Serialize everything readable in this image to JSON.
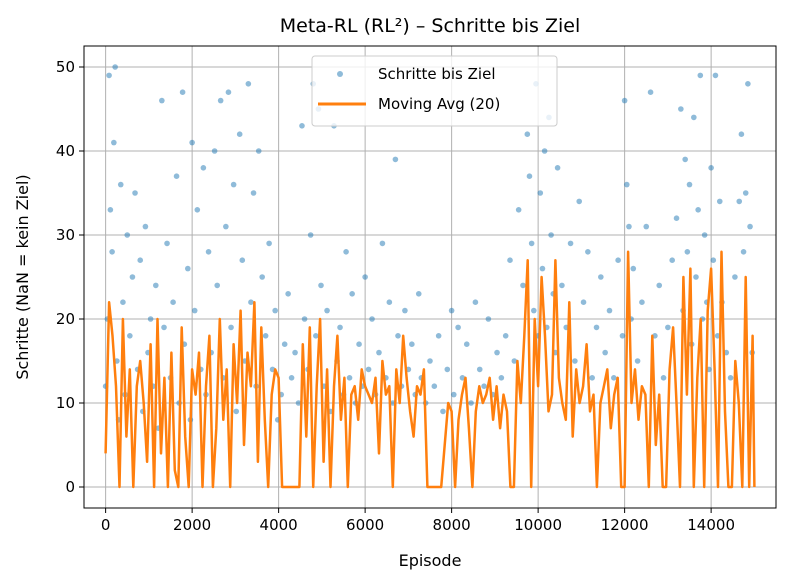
{
  "chart_data": {
    "type": "scatter",
    "title": "Meta-RL (RL²) – Schritte bis Ziel",
    "xlabel": "Episode",
    "ylabel": "Schritte (NaN = kein Ziel)",
    "xlim": [
      -500,
      15500
    ],
    "ylim": [
      -2.5,
      52.5
    ],
    "xticks": [
      0,
      2000,
      4000,
      6000,
      8000,
      10000,
      12000,
      14000
    ],
    "yticks": [
      0,
      10,
      20,
      30,
      40,
      50
    ],
    "grid": true,
    "legend_position": "top-center",
    "series": [
      {
        "name": "Schritte bis Ziel",
        "kind": "scatter",
        "color": "#1f77b4",
        "opacity": 0.5,
        "points": [
          [
            0,
            12
          ],
          [
            40,
            20
          ],
          [
            80,
            49
          ],
          [
            110,
            33
          ],
          [
            150,
            28
          ],
          [
            190,
            41
          ],
          [
            220,
            50
          ],
          [
            260,
            15
          ],
          [
            300,
            8
          ],
          [
            350,
            36
          ],
          [
            400,
            22
          ],
          [
            450,
            11
          ],
          [
            500,
            30
          ],
          [
            560,
            18
          ],
          [
            620,
            25
          ],
          [
            680,
            35
          ],
          [
            740,
            14
          ],
          [
            800,
            27
          ],
          [
            860,
            9
          ],
          [
            920,
            31
          ],
          [
            980,
            16
          ],
          [
            1040,
            20
          ],
          [
            1100,
            12
          ],
          [
            1160,
            24
          ],
          [
            1220,
            7
          ],
          [
            1300,
            46
          ],
          [
            1350,
            19
          ],
          [
            1420,
            29
          ],
          [
            1500,
            13
          ],
          [
            1560,
            22
          ],
          [
            1640,
            37
          ],
          [
            1700,
            10
          ],
          [
            1780,
            47
          ],
          [
            1820,
            17
          ],
          [
            1900,
            26
          ],
          [
            1960,
            8
          ],
          [
            2000,
            41
          ],
          [
            2060,
            21
          ],
          [
            2120,
            33
          ],
          [
            2200,
            14
          ],
          [
            2260,
            38
          ],
          [
            2320,
            11
          ],
          [
            2380,
            28
          ],
          [
            2440,
            16
          ],
          [
            2520,
            40
          ],
          [
            2580,
            24
          ],
          [
            2660,
            46
          ],
          [
            2720,
            13
          ],
          [
            2780,
            31
          ],
          [
            2840,
            47
          ],
          [
            2900,
            19
          ],
          [
            2960,
            36
          ],
          [
            3020,
            9
          ],
          [
            3100,
            42
          ],
          [
            3160,
            27
          ],
          [
            3220,
            15
          ],
          [
            3300,
            48
          ],
          [
            3360,
            22
          ],
          [
            3420,
            35
          ],
          [
            3480,
            12
          ],
          [
            3540,
            40
          ],
          [
            3620,
            25
          ],
          [
            3700,
            18
          ],
          [
            3780,
            29
          ],
          [
            3860,
            14
          ],
          [
            3920,
            21
          ],
          [
            3980,
            8
          ],
          [
            4060,
            11
          ],
          [
            4140,
            17
          ],
          [
            4220,
            23
          ],
          [
            4300,
            13
          ],
          [
            4380,
            16
          ],
          [
            4460,
            10
          ],
          [
            4540,
            43
          ],
          [
            4600,
            20
          ],
          [
            4680,
            14
          ],
          [
            4740,
            30
          ],
          [
            4800,
            48
          ],
          [
            4860,
            18
          ],
          [
            4920,
            45
          ],
          [
            4980,
            24
          ],
          [
            5050,
            12
          ],
          [
            5120,
            21
          ],
          [
            5200,
            9
          ],
          [
            5280,
            43
          ],
          [
            5350,
            15
          ],
          [
            5420,
            19
          ],
          [
            5500,
            11
          ],
          [
            5560,
            28
          ],
          [
            5640,
            13
          ],
          [
            5700,
            23
          ],
          [
            5780,
            10
          ],
          [
            5860,
            17
          ],
          [
            5940,
            12
          ],
          [
            6000,
            25
          ],
          [
            6080,
            14
          ],
          [
            6160,
            20
          ],
          [
            6240,
            11
          ],
          [
            6320,
            16
          ],
          [
            6400,
            29
          ],
          [
            6480,
            13
          ],
          [
            6560,
            22
          ],
          [
            6640,
            10
          ],
          [
            6700,
            39
          ],
          [
            6760,
            18
          ],
          [
            6840,
            12
          ],
          [
            6920,
            21
          ],
          [
            7000,
            14
          ],
          [
            7080,
            17
          ],
          [
            7160,
            11
          ],
          [
            7240,
            23
          ],
          [
            7300,
            13
          ],
          [
            7400,
            10
          ],
          [
            7500,
            15
          ],
          [
            7600,
            12
          ],
          [
            7700,
            18
          ],
          [
            7800,
            9
          ],
          [
            7900,
            14
          ],
          [
            8000,
            21
          ],
          [
            8050,
            11
          ],
          [
            8150,
            19
          ],
          [
            8250,
            13
          ],
          [
            8350,
            17
          ],
          [
            8450,
            10
          ],
          [
            8550,
            22
          ],
          [
            8650,
            14
          ],
          [
            8750,
            12
          ],
          [
            8850,
            20
          ],
          [
            8950,
            11
          ],
          [
            9050,
            16
          ],
          [
            9150,
            13
          ],
          [
            9250,
            18
          ],
          [
            9350,
            27
          ],
          [
            9450,
            15
          ],
          [
            9550,
            33
          ],
          [
            9650,
            24
          ],
          [
            9750,
            42
          ],
          [
            9800,
            37
          ],
          [
            9850,
            29
          ],
          [
            9900,
            21
          ],
          [
            9950,
            48
          ],
          [
            10000,
            18
          ],
          [
            10050,
            35
          ],
          [
            10100,
            26
          ],
          [
            10150,
            40
          ],
          [
            10200,
            19
          ],
          [
            10250,
            44
          ],
          [
            10300,
            30
          ],
          [
            10350,
            23
          ],
          [
            10400,
            16
          ],
          [
            10450,
            38
          ],
          [
            10550,
            24
          ],
          [
            10650,
            19
          ],
          [
            10750,
            29
          ],
          [
            10850,
            15
          ],
          [
            10950,
            34
          ],
          [
            11050,
            22
          ],
          [
            11150,
            28
          ],
          [
            11250,
            13
          ],
          [
            11350,
            19
          ],
          [
            11450,
            25
          ],
          [
            11550,
            16
          ],
          [
            11650,
            21
          ],
          [
            11750,
            13
          ],
          [
            11850,
            27
          ],
          [
            11950,
            18
          ],
          [
            12000,
            46
          ],
          [
            12050,
            36
          ],
          [
            12100,
            31
          ],
          [
            12150,
            20
          ],
          [
            12200,
            26
          ],
          [
            12300,
            15
          ],
          [
            12400,
            22
          ],
          [
            12500,
            31
          ],
          [
            12600,
            47
          ],
          [
            12700,
            18
          ],
          [
            12800,
            24
          ],
          [
            12900,
            13
          ],
          [
            13000,
            19
          ],
          [
            13100,
            27
          ],
          [
            13200,
            32
          ],
          [
            13300,
            45
          ],
          [
            13350,
            21
          ],
          [
            13400,
            39
          ],
          [
            13450,
            28
          ],
          [
            13500,
            36
          ],
          [
            13550,
            17
          ],
          [
            13600,
            44
          ],
          [
            13650,
            25
          ],
          [
            13700,
            33
          ],
          [
            13750,
            49
          ],
          [
            13800,
            20
          ],
          [
            13850,
            30
          ],
          [
            13900,
            22
          ],
          [
            13950,
            14
          ],
          [
            14000,
            38
          ],
          [
            14050,
            27
          ],
          [
            14100,
            49
          ],
          [
            14150,
            18
          ],
          [
            14200,
            34
          ],
          [
            14250,
            22
          ],
          [
            14350,
            16
          ],
          [
            14450,
            13
          ],
          [
            14550,
            25
          ],
          [
            14650,
            34
          ],
          [
            14700,
            42
          ],
          [
            14750,
            28
          ],
          [
            14800,
            35
          ],
          [
            14850,
            48
          ],
          [
            14900,
            31
          ],
          [
            14950,
            16
          ]
        ]
      },
      {
        "name": "Moving Avg (20)",
        "kind": "line",
        "color": "#ff7f0e",
        "x": [
          0,
          80,
          160,
          240,
          320,
          400,
          480,
          560,
          640,
          720,
          800,
          880,
          960,
          1040,
          1120,
          1200,
          1280,
          1360,
          1440,
          1520,
          1600,
          1680,
          1760,
          1840,
          1920,
          2000,
          2080,
          2160,
          2240,
          2320,
          2400,
          2480,
          2560,
          2640,
          2720,
          2800,
          2880,
          2960,
          3040,
          3120,
          3200,
          3280,
          3360,
          3440,
          3520,
          3600,
          3680,
          3760,
          3840,
          3920,
          4000,
          4080,
          4160,
          4240,
          4320,
          4400,
          4480,
          4560,
          4640,
          4720,
          4800,
          4880,
          4960,
          5040,
          5120,
          5200,
          5280,
          5360,
          5440,
          5520,
          5600,
          5680,
          5760,
          5840,
          5920,
          6000,
          6080,
          6160,
          6240,
          6320,
          6400,
          6480,
          6560,
          6640,
          6720,
          6800,
          6880,
          6960,
          7040,
          7120,
          7200,
          7280,
          7360,
          7440,
          7520,
          7600,
          7680,
          7760,
          7840,
          7920,
          8000,
          8080,
          8160,
          8240,
          8320,
          8400,
          8480,
          8560,
          8640,
          8720,
          8800,
          8880,
          8960,
          9040,
          9120,
          9200,
          9280,
          9360,
          9440,
          9520,
          9600,
          9680,
          9760,
          9840,
          9920,
          10000,
          10080,
          10160,
          10240,
          10320,
          10400,
          10480,
          10560,
          10640,
          10720,
          10800,
          10880,
          10960,
          11040,
          11120,
          11200,
          11280,
          11360,
          11440,
          11520,
          11600,
          11680,
          11760,
          11840,
          11920,
          12000,
          12080,
          12160,
          12240,
          12320,
          12400,
          12480,
          12560,
          12640,
          12720,
          12800,
          12880,
          12960,
          13040,
          13120,
          13200,
          13280,
          13360,
          13440,
          13520,
          13600,
          13680,
          13760,
          13840,
          13920,
          14000,
          14080,
          14160,
          14240,
          14320,
          14400,
          14480,
          14560,
          14640,
          14720,
          14800,
          14880,
          14960,
          15000
        ],
        "values": [
          4,
          22,
          18,
          12,
          0,
          20,
          6,
          14,
          0,
          12,
          15,
          10,
          3,
          17,
          0,
          20,
          4,
          13,
          0,
          16,
          2,
          0,
          19,
          6,
          0,
          14,
          11,
          16,
          0,
          12,
          18,
          0,
          7,
          20,
          8,
          14,
          0,
          17,
          10,
          21,
          5,
          16,
          12,
          22,
          3,
          19,
          8,
          0,
          11,
          14,
          13,
          0,
          0,
          0,
          0,
          0,
          0,
          17,
          6,
          19,
          0,
          12,
          20,
          3,
          14,
          0,
          12,
          18,
          8,
          13,
          0,
          11,
          12,
          8,
          14,
          12,
          11,
          10,
          13,
          4,
          15,
          11,
          12,
          0,
          14,
          10,
          18,
          13,
          9,
          6,
          12,
          11,
          14,
          0,
          0,
          0,
          0,
          0,
          5,
          10,
          9,
          0,
          8,
          11,
          13,
          7,
          0,
          9,
          12,
          10,
          11,
          13,
          8,
          12,
          7,
          11,
          9,
          0,
          0,
          15,
          10,
          18,
          27,
          0,
          20,
          12,
          25,
          18,
          9,
          11,
          27,
          13,
          10,
          8,
          22,
          6,
          14,
          10,
          12,
          17,
          9,
          11,
          0,
          10,
          12,
          14,
          7,
          11,
          13,
          0,
          0,
          28,
          10,
          14,
          8,
          12,
          11,
          0,
          18,
          5,
          11,
          0,
          0,
          14,
          19,
          10,
          0,
          25,
          11,
          26,
          0,
          13,
          20,
          0,
          21,
          26,
          14,
          0,
          28,
          9,
          0,
          0,
          15,
          10,
          0,
          25,
          0,
          18,
          0
        ]
      }
    ]
  }
}
